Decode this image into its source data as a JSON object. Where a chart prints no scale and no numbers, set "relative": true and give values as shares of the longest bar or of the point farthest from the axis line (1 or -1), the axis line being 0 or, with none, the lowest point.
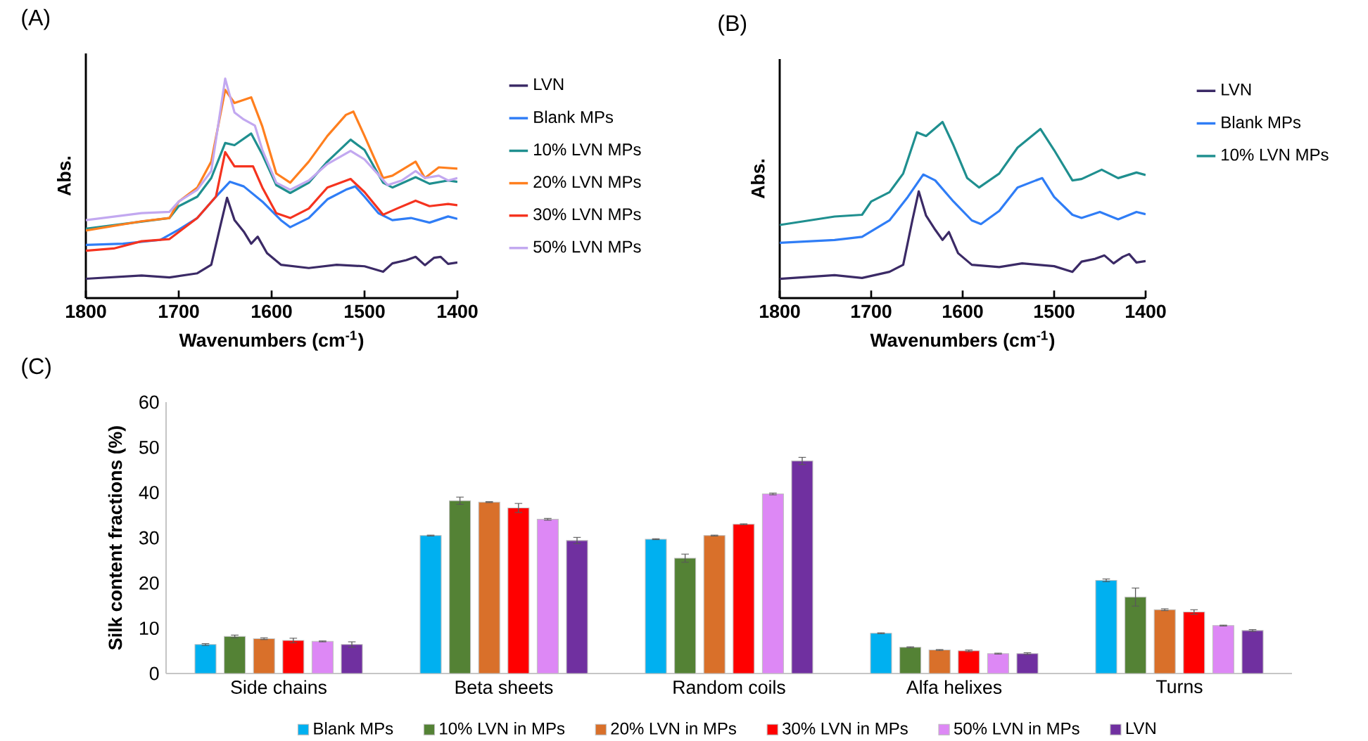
{
  "chart_data": [
    {
      "type": "line",
      "title": "(A)",
      "xlabel": "Wavenumbers (cm$^{-1}$)",
      "ylabel": "Abs.",
      "relative": true,
      "tick_labels": "x",
      "legend": "right",
      "xlim": [
        1800,
        1400
      ],
      "xticks": [
        1800,
        1700,
        1600,
        1500,
        1400
      ],
      "series": [
        {
          "name": "LVN",
          "color": "#3b2a66",
          "x": [
            1800,
            1740,
            1710,
            1680,
            1665,
            1655,
            1648,
            1640,
            1630,
            1622,
            1615,
            1605,
            1590,
            1560,
            1530,
            1500,
            1480,
            1470,
            1455,
            1445,
            1435,
            1425,
            1418,
            1410,
            1400
          ],
          "values": [
            0.088,
            0.103,
            0.094,
            0.113,
            0.152,
            0.333,
            0.457,
            0.356,
            0.303,
            0.248,
            0.28,
            0.205,
            0.152,
            0.137,
            0.152,
            0.145,
            0.12,
            0.158,
            0.173,
            0.188,
            0.15,
            0.184,
            0.188,
            0.156,
            0.162
          ]
        },
        {
          "name": "Blank MPs",
          "color": "#2f7df6",
          "x": [
            1800,
            1760,
            1720,
            1700,
            1680,
            1660,
            1645,
            1630,
            1610,
            1590,
            1580,
            1560,
            1540,
            1520,
            1510,
            1500,
            1485,
            1470,
            1450,
            1430,
            1410,
            1400
          ],
          "values": [
            0.242,
            0.248,
            0.265,
            0.312,
            0.365,
            0.462,
            0.53,
            0.509,
            0.44,
            0.355,
            0.323,
            0.365,
            0.45,
            0.494,
            0.509,
            0.462,
            0.387,
            0.355,
            0.365,
            0.344,
            0.372,
            0.361
          ]
        },
        {
          "name": "10% LVN MPs",
          "color": "#1f8f8f",
          "x": [
            1800,
            1740,
            1710,
            1700,
            1680,
            1665,
            1650,
            1640,
            1622,
            1610,
            1595,
            1580,
            1560,
            1540,
            1515,
            1500,
            1480,
            1470,
            1445,
            1430,
            1410,
            1400
          ],
          "values": [
            0.316,
            null,
            0.365,
            0.419,
            0.462,
            0.547,
            0.707,
            0.697,
            0.75,
            0.654,
            0.515,
            0.479,
            0.526,
            0.622,
            0.722,
            0.675,
            0.526,
            0.504,
            0.551,
            0.521,
            0.536,
            0.53
          ]
        },
        {
          "name": "20% LVN MPs",
          "color": "#ff7f1e",
          "x": [
            1800,
            1740,
            1710,
            1700,
            1680,
            1665,
            1650,
            1640,
            1622,
            1610,
            1595,
            1580,
            1560,
            1540,
            1520,
            1512,
            1500,
            1480,
            1470,
            1445,
            1435,
            1420,
            1400
          ],
          "values": [
            0.308,
            0.35,
            0.365,
            0.44,
            0.504,
            0.622,
            0.949,
            0.889,
            0.915,
            0.782,
            0.568,
            0.526,
            0.622,
            0.739,
            0.835,
            0.85,
            0.739,
            0.547,
            0.558,
            0.622,
            0.547,
            0.596,
            0.59
          ]
        },
        {
          "name": "30% LVN MPs",
          "color": "#f5331f",
          "x": [
            1800,
            1770,
            1740,
            1710,
            1680,
            1660,
            1650,
            1640,
            1620,
            1610,
            1595,
            1580,
            1560,
            1540,
            1515,
            1500,
            1480,
            1465,
            1445,
            1430,
            1410,
            1400
          ],
          "values": [
            0.216,
            0.226,
            0.259,
            0.269,
            0.365,
            0.462,
            0.665,
            0.6,
            0.6,
            0.504,
            0.387,
            0.365,
            0.408,
            0.504,
            0.543,
            0.483,
            0.38,
            0.408,
            0.444,
            0.419,
            0.429,
            0.423
          ]
        },
        {
          "name": "50% LVN MPs",
          "color": "#c2a8f0",
          "x": [
            1800,
            1740,
            1710,
            1700,
            1680,
            1665,
            1650,
            1640,
            1630,
            1618,
            1610,
            1595,
            1580,
            1560,
            1540,
            1515,
            1500,
            1475,
            1460,
            1445,
            1435,
            1420,
            1410,
            1400
          ],
          "values": [
            0.355,
            0.387,
            0.393,
            0.44,
            0.494,
            0.579,
            1.0,
            0.846,
            0.814,
            0.786,
            0.675,
            0.526,
            0.494,
            0.536,
            0.611,
            0.671,
            0.632,
            0.515,
            0.536,
            0.579,
            0.547,
            0.558,
            0.536,
            0.547
          ]
        }
      ]
    },
    {
      "type": "line",
      "title": "(B)",
      "xlabel": "Wavenumbers (cm$^{-1}$)",
      "ylabel": "Abs.",
      "relative": true,
      "tick_labels": "x",
      "legend": "right",
      "xlim": [
        1800,
        1400
      ],
      "xticks": [
        1800,
        1700,
        1600,
        1500,
        1400
      ],
      "series": [
        {
          "name": "LVN",
          "color": "#3b2a66",
          "x": [
            1800,
            1740,
            1710,
            1680,
            1665,
            1655,
            1648,
            1640,
            1630,
            1622,
            1615,
            1605,
            1590,
            1560,
            1535,
            1500,
            1480,
            1470,
            1455,
            1445,
            1435,
            1425,
            1418,
            1410,
            1400
          ],
          "values": [
            0.109,
            0.13,
            0.114,
            0.149,
            0.189,
            0.441,
            0.606,
            0.468,
            0.388,
            0.33,
            0.375,
            0.255,
            0.189,
            0.176,
            0.197,
            0.181,
            0.149,
            0.207,
            0.223,
            0.242,
            0.197,
            0.234,
            0.25,
            0.202,
            0.21
          ]
        },
        {
          "name": "Blank MPs",
          "color": "#2f7df6",
          "x": [
            1800,
            1740,
            1710,
            1680,
            1660,
            1643,
            1630,
            1610,
            1590,
            1580,
            1560,
            1540,
            1520,
            1513,
            1500,
            1480,
            1470,
            1450,
            1430,
            1410,
            1400
          ],
          "values": [
            0.314,
            0.33,
            0.348,
            0.441,
            0.574,
            0.702,
            0.668,
            0.548,
            0.441,
            0.42,
            0.495,
            0.628,
            0.668,
            0.681,
            0.574,
            0.473,
            0.455,
            0.489,
            0.447,
            0.489,
            0.476
          ]
        },
        {
          "name": "10% LVN MPs",
          "color": "#1f8f8f",
          "x": [
            1800,
            1740,
            1710,
            1700,
            1680,
            1665,
            1650,
            1640,
            1622,
            1610,
            1595,
            1582,
            1560,
            1540,
            1515,
            1500,
            1480,
            1470,
            1448,
            1430,
            1410,
            1400
          ],
          "values": [
            0.415,
            0.463,
            0.473,
            0.548,
            0.601,
            0.707,
            0.941,
            0.92,
            1.0,
            0.867,
            0.681,
            0.628,
            0.707,
            0.854,
            0.96,
            0.84,
            0.668,
            0.676,
            0.729,
            0.681,
            0.713,
            0.699
          ]
        }
      ]
    },
    {
      "type": "bar",
      "title": "(C)",
      "ylabel": "Silk content fractions (%)",
      "legend": "bottom",
      "ylim": [
        0,
        60
      ],
      "yticks": [
        0,
        10,
        20,
        30,
        40,
        50,
        60
      ],
      "categories": [
        "Side chains",
        "Beta sheets",
        "Random coils",
        "Alfa helixes",
        "Turns"
      ],
      "series": [
        {
          "name": "Blank MPs",
          "color": "#00b0f0",
          "values": [
            6.4,
            30.5,
            29.7,
            8.9,
            20.6
          ],
          "errors": [
            0.2,
            0.1,
            0.1,
            0.1,
            0.3
          ]
        },
        {
          "name": "10% LVN in MPs",
          "color": "#548235",
          "values": [
            8.2,
            38.2,
            25.5,
            5.8,
            16.9
          ],
          "errors": [
            0.3,
            0.8,
            0.9,
            0.1,
            2.0
          ]
        },
        {
          "name": "20% LVN in MPs",
          "color": "#d9702a",
          "values": [
            7.7,
            37.9,
            30.5,
            5.2,
            14.1
          ],
          "errors": [
            0.2,
            0.1,
            0.1,
            0.1,
            0.2
          ]
        },
        {
          "name": "30% LVN in MPs",
          "color": "#ff0000",
          "values": [
            7.3,
            36.6,
            33.0,
            5.0,
            13.6
          ],
          "errors": [
            0.5,
            1.0,
            0.1,
            0.2,
            0.5
          ]
        },
        {
          "name": "50% LVN in MPs",
          "color": "#dd88f5",
          "values": [
            7.1,
            34.1,
            39.7,
            4.4,
            10.6
          ],
          "errors": [
            0.1,
            0.2,
            0.2,
            0.1,
            0.1
          ]
        },
        {
          "name": "LVN",
          "color": "#7030a0",
          "values": [
            6.4,
            29.4,
            47.0,
            4.4,
            9.5
          ],
          "errors": [
            0.6,
            0.7,
            0.8,
            0.2,
            0.2
          ]
        }
      ]
    }
  ]
}
